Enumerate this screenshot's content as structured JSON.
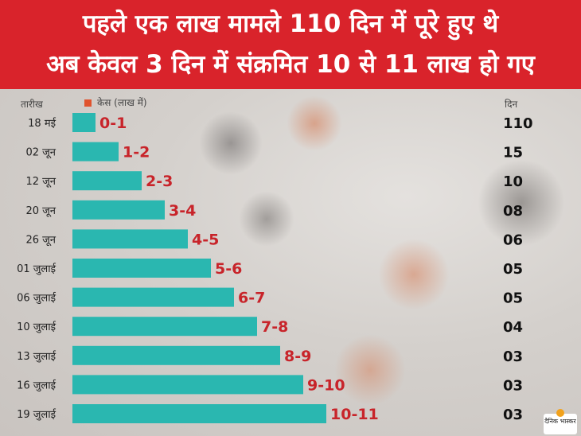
{
  "header": {
    "line1": "पहले एक लाख मामले 110 दिन में पूरे हुए थे",
    "line2": "अब केवल 3 दिन में संक्रमित 10 से 11 लाख हो गए"
  },
  "columns": {
    "date": "तारीख",
    "legend": "केस (लाख में)",
    "days": "दिन"
  },
  "colors": {
    "header": "#d9232b",
    "bar": "#2ab7b0",
    "range_label": "#c8242a",
    "legend_marker": "#e0532e"
  },
  "logo": {
    "text": "दैनिक भास्कर"
  },
  "chart_data": {
    "type": "bar",
    "orientation": "horizontal",
    "title": "पहले एक लाख मामले 110 दिन में पूरे हुए थे / अब केवल 3 दिन में संक्रमित 10 से 11 लाख हो गए",
    "categories": [
      "18 मई",
      "02 जून",
      "12 जून",
      "20 जून",
      "26 जून",
      "01 जुलाई",
      "06 जुलाई",
      "10 जुलाई",
      "13 जुलाई",
      "16 जुलाई",
      "19 जुलाई"
    ],
    "series": [
      {
        "name": "केस (लाख में)",
        "values": [
          1,
          2,
          3,
          4,
          5,
          6,
          7,
          8,
          9,
          10,
          11
        ],
        "labels": [
          "0-1",
          "1-2",
          "2-3",
          "3-4",
          "4-5",
          "5-6",
          "6-7",
          "7-8",
          "8-9",
          "9-10",
          "10-11"
        ]
      }
    ],
    "days": [
      "110",
      "15",
      "10",
      "08",
      "06",
      "05",
      "05",
      "04",
      "03",
      "03",
      "03"
    ],
    "xlim": [
      0,
      11
    ]
  }
}
